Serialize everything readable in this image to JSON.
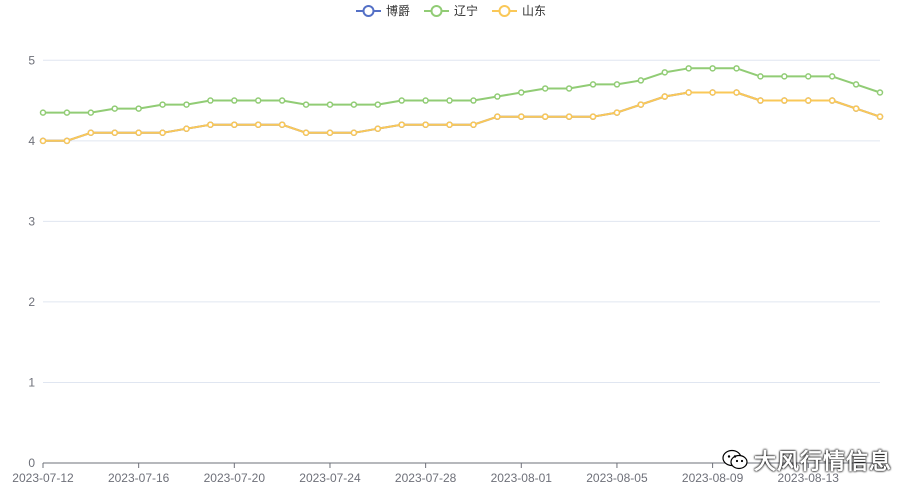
{
  "chart_data": {
    "type": "line",
    "x": [
      "2023-07-12",
      "2023-07-13",
      "2023-07-14",
      "2023-07-15",
      "2023-07-16",
      "2023-07-17",
      "2023-07-18",
      "2023-07-19",
      "2023-07-20",
      "2023-07-21",
      "2023-07-22",
      "2023-07-23",
      "2023-07-24",
      "2023-07-25",
      "2023-07-26",
      "2023-07-27",
      "2023-07-28",
      "2023-07-29",
      "2023-07-30",
      "2023-07-31",
      "2023-08-01",
      "2023-08-02",
      "2023-08-03",
      "2023-08-04",
      "2023-08-05",
      "2023-08-06",
      "2023-08-07",
      "2023-08-08",
      "2023-08-09",
      "2023-08-10",
      "2023-08-11",
      "2023-08-12",
      "2023-08-13",
      "2023-08-14",
      "2023-08-15",
      "2023-08-16"
    ],
    "x_ticks": [
      "2023-07-12",
      "2023-07-16",
      "2023-07-20",
      "2023-07-24",
      "2023-07-28",
      "2023-08-01",
      "2023-08-05",
      "2023-08-09",
      "2023-08-13"
    ],
    "y_ticks": [
      0,
      1,
      2,
      3,
      4,
      5
    ],
    "ylim": [
      0,
      5.5
    ],
    "grid": true,
    "legend_position": "top-center",
    "series": [
      {
        "name": "博爵",
        "color": "#5470c6",
        "values": [
          4.0,
          4.0,
          4.1,
          4.1,
          4.1,
          4.1,
          4.15,
          4.2,
          4.2,
          4.2,
          4.2,
          4.1,
          4.1,
          4.1,
          4.15,
          4.2,
          4.2,
          4.2,
          4.2,
          4.3,
          4.3,
          4.3,
          4.3,
          4.3,
          4.35,
          4.45,
          4.55,
          4.6,
          4.6,
          4.6,
          4.5,
          4.5,
          4.5,
          4.5,
          4.4,
          4.3
        ]
      },
      {
        "name": "辽宁",
        "color": "#91cc75",
        "values": [
          4.35,
          4.35,
          4.35,
          4.4,
          4.4,
          4.45,
          4.45,
          4.5,
          4.5,
          4.5,
          4.5,
          4.45,
          4.45,
          4.45,
          4.45,
          4.5,
          4.5,
          4.5,
          4.5,
          4.55,
          4.6,
          4.65,
          4.65,
          4.7,
          4.7,
          4.75,
          4.85,
          4.9,
          4.9,
          4.9,
          4.8,
          4.8,
          4.8,
          4.8,
          4.7,
          4.6
        ]
      },
      {
        "name": "山东",
        "color": "#fac858",
        "values": [
          4.0,
          4.0,
          4.1,
          4.1,
          4.1,
          4.1,
          4.15,
          4.2,
          4.2,
          4.2,
          4.2,
          4.1,
          4.1,
          4.1,
          4.15,
          4.2,
          4.2,
          4.2,
          4.2,
          4.3,
          4.3,
          4.3,
          4.3,
          4.3,
          4.35,
          4.45,
          4.55,
          4.6,
          4.6,
          4.6,
          4.5,
          4.5,
          4.5,
          4.5,
          4.4,
          4.3
        ]
      }
    ]
  },
  "watermark": {
    "text": "大风行情信息",
    "icon": "wechat-icon"
  }
}
